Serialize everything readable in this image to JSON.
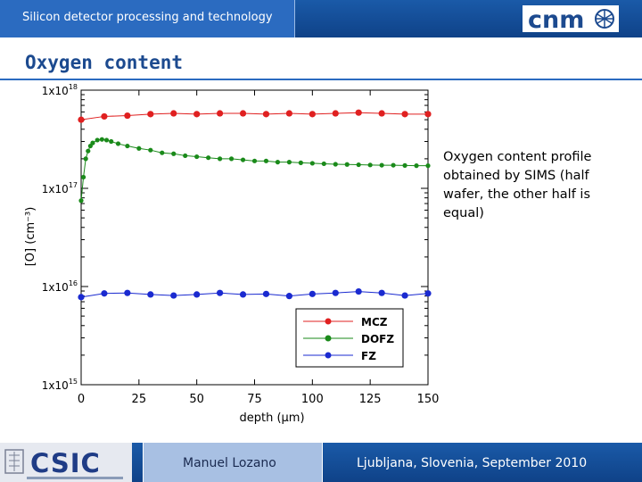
{
  "header": {
    "title": "Silicon detector processing and technology",
    "logo_text": "cnm"
  },
  "slide_title": "Oxygen content",
  "note_text": "Oxygen content profile obtained by SIMS (half wafer, the other half is equal)",
  "footer": {
    "logo_text": "CSIC",
    "author": "Manuel Lozano",
    "place": "Ljubljana, Slovenia, September 2010"
  },
  "colors": {
    "accent": "#2b6bc0",
    "title": "#1c4a8f",
    "mcz": "#e02020",
    "dofz": "#1a8a1a",
    "fz": "#1a2ad0"
  },
  "chart_data": {
    "type": "scatter",
    "xlabel": "depth (μm)",
    "ylabel": "[O] (cm⁻³)",
    "xlim": [
      0,
      150
    ],
    "ylim": [
      1000000000000000.0,
      1e+18
    ],
    "yscale": "log",
    "x_ticks": [
      "0",
      "25",
      "50",
      "75",
      "100",
      "125",
      "150"
    ],
    "y_ticks": [
      {
        "base": "1x10",
        "exp": "15"
      },
      {
        "base": "1x10",
        "exp": "16"
      },
      {
        "base": "1x10",
        "exp": "17"
      },
      {
        "base": "1x10",
        "exp": "18"
      }
    ],
    "legend_position": "bottom-right",
    "series": [
      {
        "name": "MCZ",
        "x": [
          0,
          10,
          20,
          30,
          40,
          50,
          60,
          70,
          80,
          90,
          100,
          110,
          120,
          130,
          140,
          150
        ],
        "y": [
          5e+17,
          5.4e+17,
          5.5e+17,
          5.7e+17,
          5.8e+17,
          5.7e+17,
          5.8e+17,
          5.8e+17,
          5.7e+17,
          5.8e+17,
          5.7e+17,
          5.8e+17,
          5.9e+17,
          5.8e+17,
          5.7e+17,
          5.7e+17
        ]
      },
      {
        "name": "DOFZ",
        "x": [
          0,
          1,
          2,
          3,
          4,
          5,
          7,
          9,
          11,
          13,
          16,
          20,
          25,
          30,
          35,
          40,
          45,
          50,
          55,
          60,
          65,
          70,
          75,
          80,
          85,
          90,
          95,
          100,
          105,
          110,
          115,
          120,
          125,
          130,
          135,
          140,
          145,
          150
        ],
        "y": [
          7.5e+16,
          1.3e+17,
          2e+17,
          2.4e+17,
          2.7e+17,
          2.9e+17,
          3.1e+17,
          3.15e+17,
          3.1e+17,
          3e+17,
          2.85e+17,
          2.7e+17,
          2.55e+17,
          2.45e+17,
          2.3e+17,
          2.25e+17,
          2.15e+17,
          2.1e+17,
          2.05e+17,
          2e+17,
          2e+17,
          1.95e+17,
          1.9e+17,
          1.9e+17,
          1.85e+17,
          1.85e+17,
          1.82e+17,
          1.8e+17,
          1.78e+17,
          1.76e+17,
          1.75e+17,
          1.74e+17,
          1.73e+17,
          1.72e+17,
          1.72e+17,
          1.71e+17,
          1.7e+17,
          1.7e+17
        ]
      },
      {
        "name": "FZ",
        "x": [
          0,
          10,
          20,
          30,
          40,
          50,
          60,
          70,
          80,
          90,
          100,
          110,
          120,
          130,
          140,
          150
        ],
        "y": [
          7800000000000000.0,
          8500000000000000.0,
          8600000000000000.0,
          8300000000000000.0,
          8100000000000000.0,
          8300000000000000.0,
          8600000000000000.0,
          8300000000000000.0,
          8400000000000000.0,
          8000000000000000.0,
          8400000000000000.0,
          8600000000000000.0,
          8900000000000000.0,
          8600000000000000.0,
          8100000000000000.0,
          8500000000000000.0
        ]
      }
    ]
  }
}
